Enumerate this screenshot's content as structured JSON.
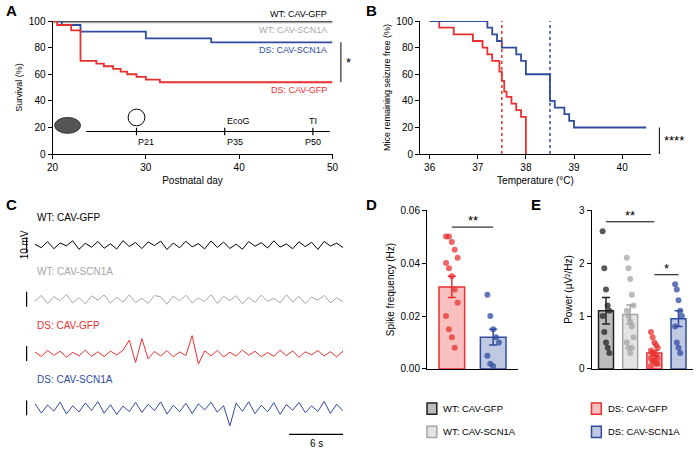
{
  "chart_data": [
    {
      "title": "A",
      "type": "line",
      "line_style": "step",
      "x_label": "Postnatal day",
      "y_label": "Survival (%)",
      "xlim": [
        20,
        50
      ],
      "xticks": [
        20,
        30,
        40,
        50
      ],
      "ylim": [
        0,
        100
      ],
      "yticks": [
        0,
        20,
        40,
        60,
        80,
        100
      ],
      "series": [
        {
          "name": "WT: CAV-GFP",
          "color": "#000000",
          "x": [
            20,
            50
          ],
          "values": [
            100,
            100
          ]
        },
        {
          "name": "WT: CAV-SCN1A",
          "color": "#a6a6a6",
          "x": [
            20,
            50
          ],
          "values": [
            99,
            99
          ]
        },
        {
          "name": "DS: CAV-SCN1A",
          "color": "#2f4ba0",
          "x": [
            20,
            21,
            23,
            30,
            37,
            50
          ],
          "values": [
            100,
            97,
            92,
            87,
            84,
            84
          ]
        },
        {
          "name": "DS: CAV-GFP",
          "color": "#e8312f",
          "x": [
            20,
            20.5,
            22,
            23,
            24.7,
            25.5,
            26.5,
            27.3,
            28,
            29,
            30,
            31.5,
            50
          ],
          "values": [
            100,
            97,
            93,
            70,
            68,
            66,
            64,
            62,
            60,
            58,
            56,
            54,
            54
          ]
        }
      ],
      "annotations": [
        {
          "text": "*",
          "between": [
            "DS: CAV-SCN1A",
            "DS: CAV-GFP"
          ]
        }
      ],
      "timeline": [
        {
          "label": "P21"
        },
        {
          "label": "P35",
          "above": "EcoG"
        },
        {
          "label": "P50",
          "above": "TI"
        }
      ]
    },
    {
      "title": "B",
      "type": "line",
      "line_style": "step",
      "x_label": "Temperature (°C)",
      "y_label": "Mice remaining seizure free (%)",
      "xlim": [
        35.8,
        40.6
      ],
      "xticks": [
        36,
        37,
        38,
        39,
        40
      ],
      "ylim": [
        0,
        100
      ],
      "yticks": [
        0,
        20,
        40,
        60,
        80,
        100
      ],
      "series": [
        {
          "color": "#e8312f",
          "median": 37.5,
          "x": [
            36,
            36.2,
            36.5,
            36.9,
            37.1,
            37.2,
            37.3,
            37.45,
            37.5,
            37.55,
            37.6,
            37.7,
            37.8,
            37.9,
            38.0
          ],
          "values": [
            100,
            95,
            90,
            85,
            80,
            75,
            70,
            62,
            55,
            47,
            43,
            38,
            33,
            28,
            0
          ]
        },
        {
          "color": "#2f4ba0",
          "median": 38.5,
          "x": [
            36,
            37.2,
            37.3,
            37.4,
            37.5,
            37.8,
            37.9,
            38.0,
            38.5,
            38.6,
            38.8,
            38.9,
            39.0,
            40.5
          ],
          "values": [
            100,
            95,
            90,
            85,
            80,
            75,
            70,
            60,
            40,
            35,
            30,
            25,
            20,
            20
          ]
        }
      ],
      "annotations": [
        {
          "text": "****"
        }
      ]
    },
    {
      "title": "C",
      "type": "line",
      "tick_labels": false,
      "xlim": [
        0,
        34.3
      ],
      "ylim": [
        -13,
        13
      ],
      "x": [
        0,
        0.7,
        1.4,
        2.1,
        2.8,
        3.5,
        4.2,
        4.9,
        5.6,
        6.3,
        7,
        7.7,
        8.4,
        9.1,
        9.8,
        10.5,
        11.2,
        11.9,
        12.6,
        13.3,
        14,
        14.7,
        15.4,
        16.1,
        16.8,
        17.5,
        18.2,
        18.9,
        19.6,
        20.3,
        21,
        21.7,
        22.4,
        23.1,
        23.8,
        24.5,
        25.2,
        25.9,
        26.6,
        27.3,
        28,
        28.7,
        29.4,
        30.1,
        30.8,
        31.5,
        32.2,
        32.9,
        33.6,
        34.3
      ],
      "series": [
        {
          "name": "WT: CAV-GFP",
          "color": "#000000",
          "values": [
            0.5,
            -1.8,
            2.2,
            -2.5,
            1.4,
            -0.6,
            2.8,
            -2.9,
            1.1,
            -1.5,
            2.4,
            -2.2,
            0.8,
            -2.7,
            2.9,
            -1.0,
            1.7,
            -2.4,
            2.1,
            -0.4,
            2.6,
            -3.0,
            1.3,
            -1.9,
            2.5,
            -1.2,
            0.9,
            -2.6,
            2.7,
            -1.6,
            1.9,
            -2.3,
            0.6,
            -2.8,
            2.3,
            -0.8,
            1.5,
            -2.0,
            2.8,
            -1.4,
            0.7,
            -2.5,
            2.2,
            -1.1,
            1.8,
            -2.9,
            2.4,
            -0.7,
            1.2,
            -1.7
          ]
        },
        {
          "name": "WT: CAV-SCN1A",
          "color": "#a6a6a6",
          "values": [
            -1.2,
            2.6,
            -2.9,
            1.8,
            -0.9,
            3.2,
            -2.4,
            1.1,
            -3.1,
            2.3,
            -0.5,
            2.9,
            -2.6,
            1.4,
            -1.9,
            3.0,
            -2.2,
            0.7,
            -2.8,
            2.5,
            1.6,
            -3.3,
            2.2,
            -1.0,
            2.7,
            -2.5,
            0.9,
            -1.6,
            3.1,
            -2.7,
            1.9,
            -0.8,
            2.4,
            -3.0,
            1.3,
            -2.1,
            2.8,
            -1.3,
            0.6,
            -2.4,
            3.0,
            -1.7,
            2.0,
            -2.9,
            1.5,
            -0.6,
            2.6,
            -2.3,
            1.0,
            -1.8
          ]
        },
        {
          "name": "DS: CAV-GFP",
          "color": "#e8312f",
          "values": [
            1.0,
            -1.9,
            2.1,
            -1.2,
            1.6,
            -2.4,
            0.8,
            -1.5,
            2.3,
            -1.8,
            1.2,
            -2.0,
            1.7,
            -0.9,
            2.2,
            9.0,
            -6.0,
            10.0,
            -3.5,
            1.4,
            -1.6,
            2.0,
            -2.2,
            1.1,
            -1.3,
            12.0,
            -7.0,
            1.8,
            -1.5,
            2.1,
            -2.3,
            0.9,
            -1.7,
            2.4,
            -1.1,
            1.5,
            -2.1,
            0.7,
            -1.9,
            2.2,
            -1.4,
            1.8,
            -2.5,
            1.2,
            -0.8,
            2.0,
            -1.6,
            1.3,
            -2.2,
            1.7
          ]
        },
        {
          "name": "DS: CAV-SCN1A",
          "color": "#2f4ba0",
          "values": [
            2.8,
            -3.5,
            1.9,
            -2.2,
            3.9,
            -4.1,
            1.4,
            -2.8,
            3.3,
            -1.7,
            4.2,
            -3.6,
            2.1,
            -4.4,
            1.2,
            -2.5,
            3.6,
            -3.0,
            2.4,
            -1.9,
            4.0,
            -4.2,
            1.7,
            -2.6,
            3.1,
            -3.8,
            2.7,
            -1.4,
            3.8,
            -2.9,
            1.5,
            -12.0,
            3.2,
            -2.3,
            4.1,
            -3.9,
            1.8,
            -2.7,
            3.5,
            -4.3,
            2.2,
            -1.6,
            3.7,
            -3.2,
            1.3,
            -2.4,
            4.3,
            -3.7,
            2.5,
            -2.0
          ]
        }
      ],
      "scale_bars": [
        {
          "label": "10 mV",
          "value": 10,
          "direction": "vertical"
        },
        {
          "label": "6 s",
          "value": 6,
          "direction": "horizontal"
        }
      ]
    },
    {
      "title": "D",
      "type": "bar",
      "tick_labels": "y",
      "y_label": "Spike frequency (Hz)",
      "categories": [
        "DS: CAV-GFP",
        "DS: CAV-SCN1A"
      ],
      "values": [
        0.031,
        0.012
      ],
      "errors": [
        0.004,
        0.003
      ],
      "colors": [
        "#e8312f",
        "#2f4ba0"
      ],
      "points": [
        [
          0.05,
          0.05,
          0.048,
          0.045,
          0.042,
          0.04,
          0.038,
          0.035,
          0.03,
          0.025,
          0.02,
          0.015,
          0.012,
          0.008
        ],
        [
          0.028,
          0.02,
          0.015,
          0.012,
          0.01,
          0.005,
          0.002,
          0.001
        ]
      ],
      "ylim": [
        0,
        0.06
      ],
      "yticks": [
        {
          "value": 0,
          "label": "0.00"
        },
        {
          "value": 0.02,
          "label": "0.02"
        },
        {
          "value": 0.04,
          "label": "0.04"
        },
        {
          "value": 0.06,
          "label": "0.06"
        }
      ],
      "annotations": [
        {
          "text": "**",
          "between": [
            "DS: CAV-GFP",
            "DS: CAV-SCN1A"
          ]
        }
      ]
    },
    {
      "title": "E",
      "type": "bar",
      "tick_labels": "y",
      "y_label": "Power (µV²/Hz)",
      "categories": [
        "WT: CAV-GFP",
        "WT: CAV-SCN1A",
        "DS: CAV-GFP",
        "DS: CAV-SCN1A"
      ],
      "values": [
        1.1,
        1.03,
        0.3,
        0.95
      ],
      "errors": [
        0.25,
        0.18,
        0.05,
        0.15
      ],
      "colors": [
        "#222222",
        "#a6a6a6",
        "#e8312f",
        "#2f4ba0"
      ],
      "points": [
        [
          2.6,
          1.9,
          1.5,
          1.2,
          1.1,
          1.0,
          0.7,
          0.5,
          0.4,
          0.3
        ],
        [
          2.1,
          1.9,
          1.7,
          1.4,
          1.2,
          1.1,
          1.0,
          0.9,
          0.8,
          0.6,
          0.5,
          0.4,
          0.3,
          0.4
        ],
        [
          0.7,
          0.6,
          0.5,
          0.45,
          0.4,
          0.35,
          0.3,
          0.3,
          0.25,
          0.2,
          0.2,
          0.15,
          0.15,
          0.1,
          0.1,
          0.05
        ],
        [
          1.6,
          1.5,
          1.3,
          1.1,
          1.0,
          0.8,
          0.5,
          0.4,
          0.3
        ]
      ],
      "ylim": [
        0,
        3
      ],
      "yticks": [
        0,
        1,
        2,
        3
      ],
      "annotations": [
        {
          "text": "**",
          "between": [
            "WT: CAV-GFP",
            "DS: CAV-GFP"
          ]
        },
        {
          "text": "*",
          "between": [
            "DS: CAV-GFP",
            "DS: CAV-SCN1A"
          ]
        }
      ]
    }
  ]
}
